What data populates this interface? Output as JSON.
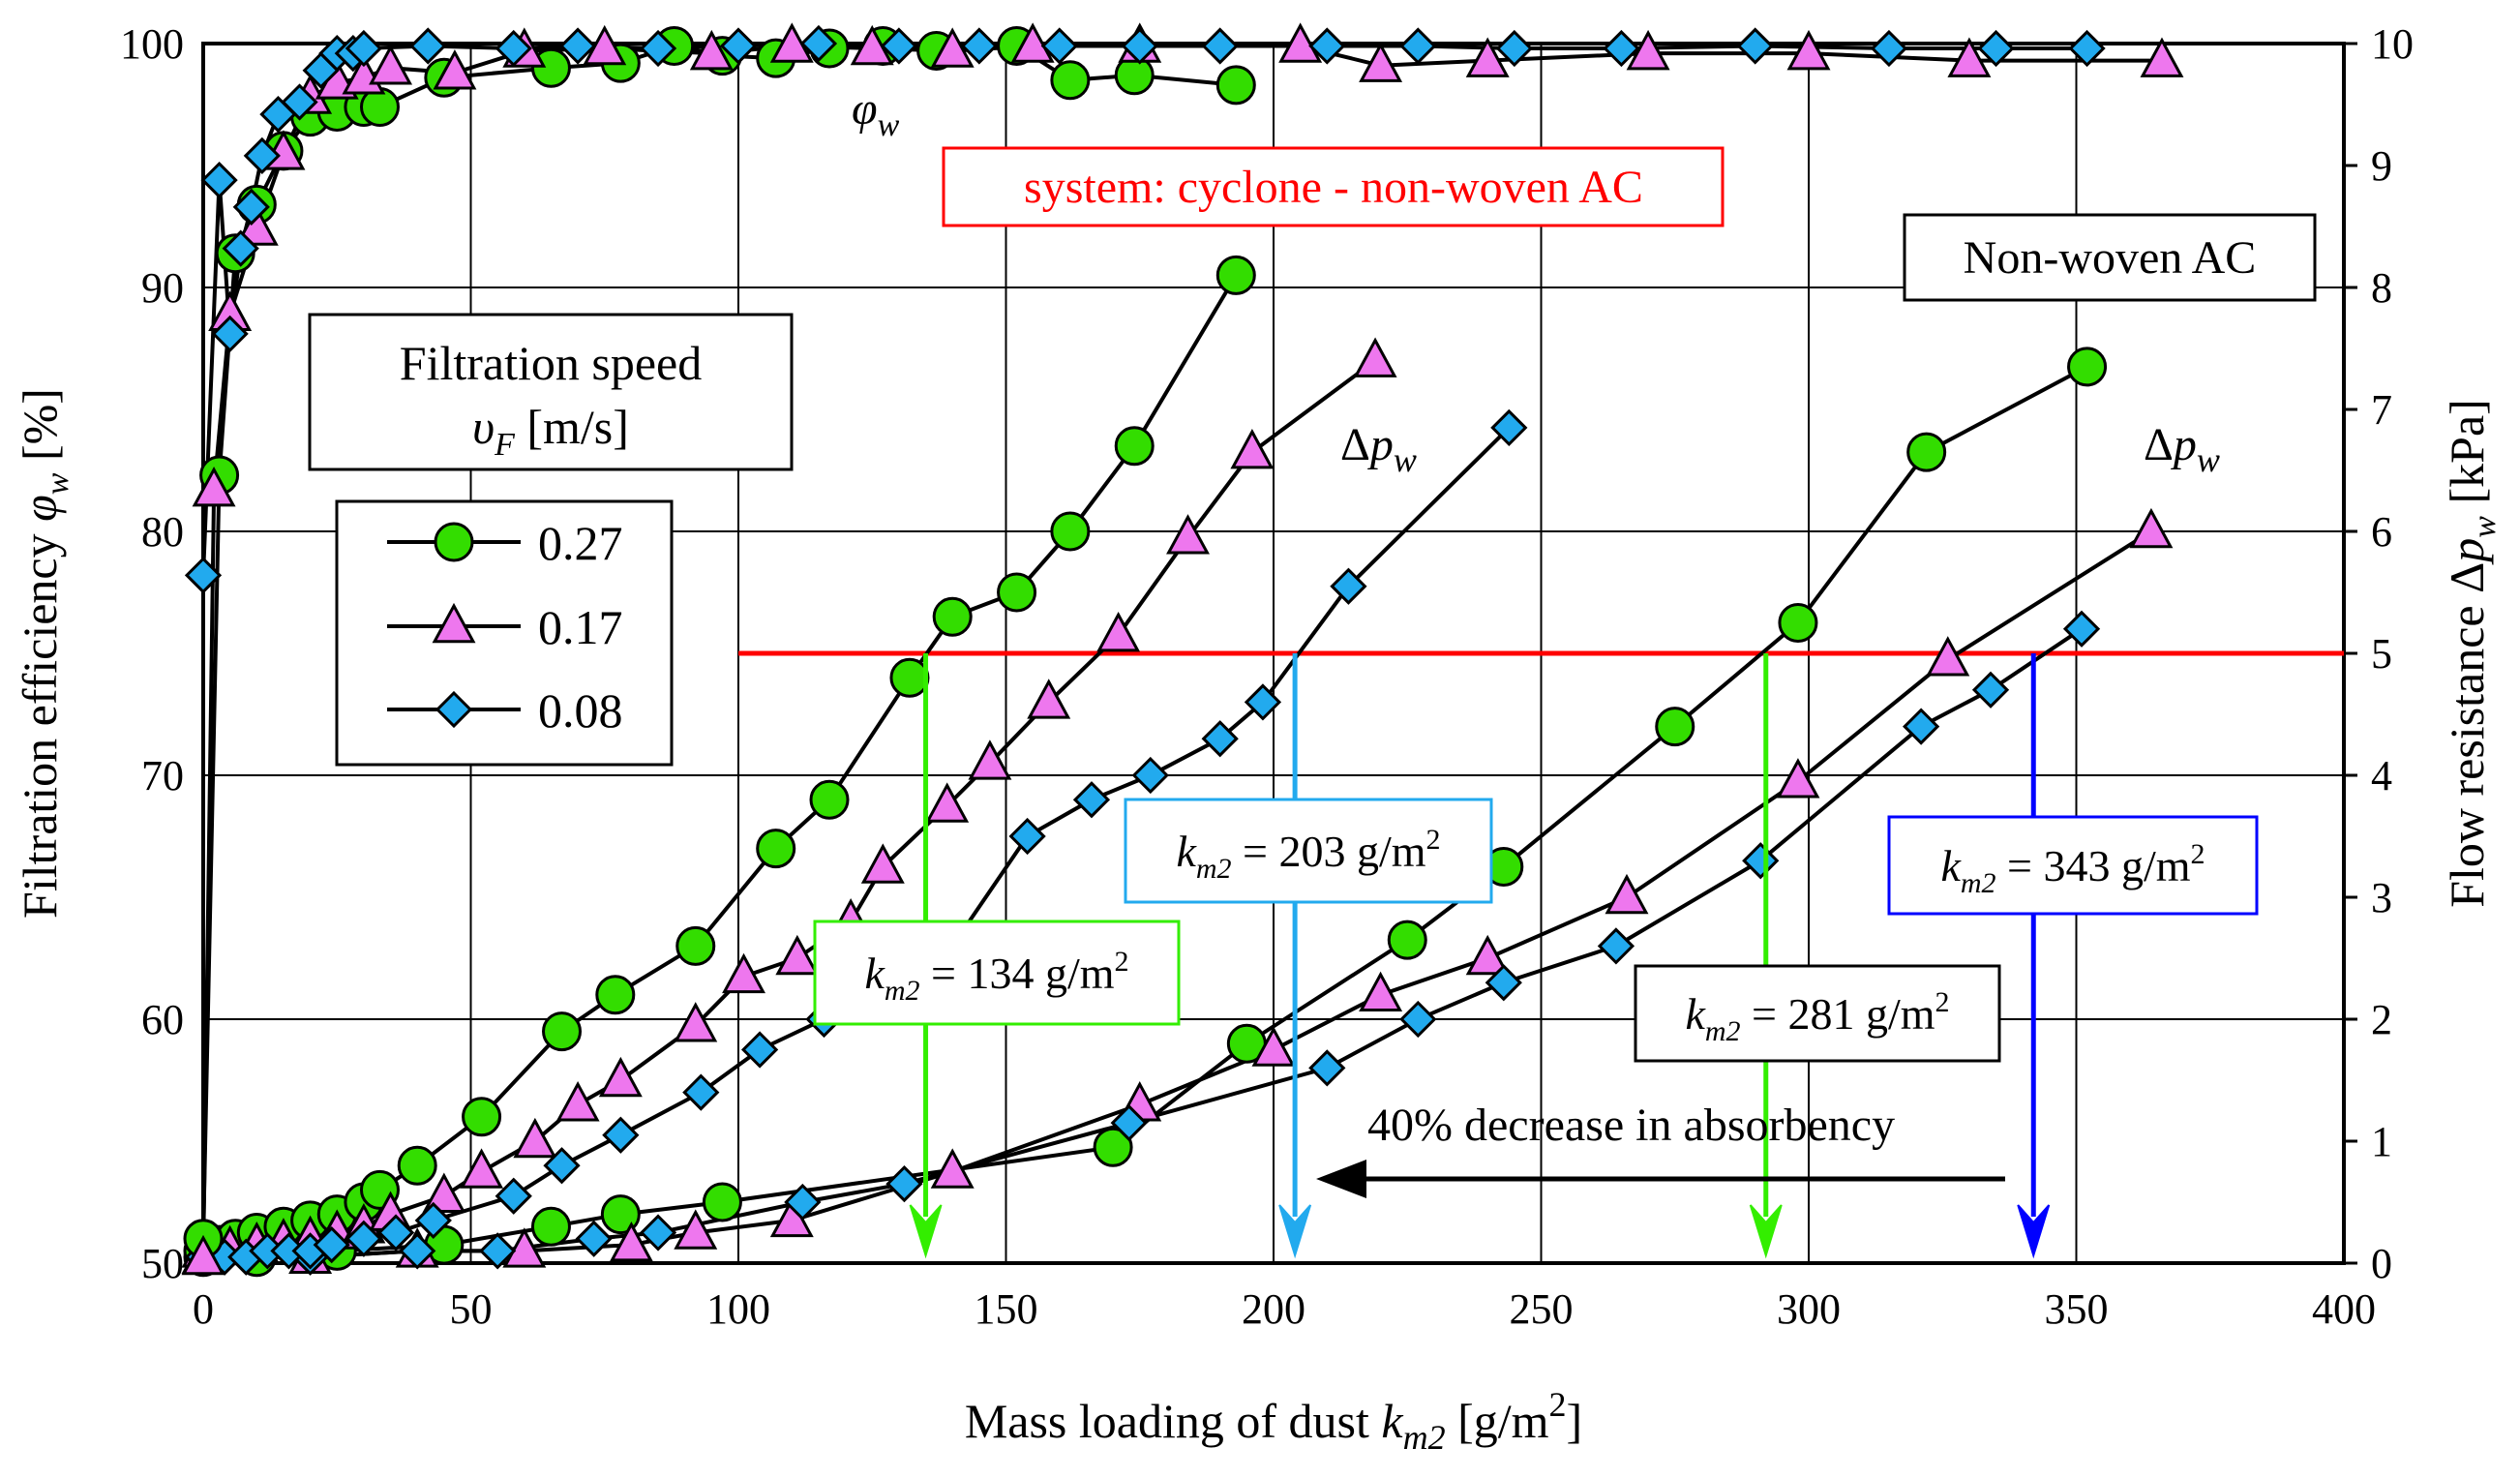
{
  "chart_data": {
    "type": "line",
    "title": "",
    "xlabel": {
      "pre": "Mass loading of dust ",
      "var": "k",
      "sub": "m2",
      "post": " [g/m",
      "sup": "2",
      "end": "]"
    },
    "ylabel_left": {
      "pre": "Filtration efficiency ",
      "var": "φ",
      "sub": "w",
      "post": " [%]"
    },
    "ylabel_right": {
      "pre": "Flow resistance Δ",
      "var": "p",
      "sub": "w",
      "post": " [kPa]"
    },
    "xlim": [
      0,
      400
    ],
    "ylim_left": [
      50,
      100
    ],
    "ylim_right": [
      0,
      10
    ],
    "xticks": [
      "0",
      "50",
      "100",
      "150",
      "200",
      "250",
      "300",
      "350",
      "400"
    ],
    "yticks_left": [
      "50",
      "60",
      "70",
      "80",
      "90",
      "100"
    ],
    "yticks_right": [
      "0",
      "1",
      "2",
      "3",
      "4",
      "5",
      "6",
      "7",
      "8",
      "9",
      "10"
    ],
    "grid": true,
    "legend": {
      "title_line1": "Filtration speed",
      "title_line2": {
        "var": "υ",
        "sub": "F",
        "post": " [m/s]"
      },
      "entries": [
        "0.27",
        "0.17",
        "0.08"
      ],
      "placement": "upper-left"
    },
    "series_styles": [
      {
        "name": "0.27",
        "marker": "circle",
        "color": "#33dd00"
      },
      {
        "name": "0.17",
        "marker": "triangle",
        "color": "#ee77ee"
      },
      {
        "name": "0.08",
        "marker": "diamond",
        "color": "#22aaee"
      }
    ],
    "efficiency_series": [
      {
        "name": "0.27",
        "x": [
          0,
          3,
          6,
          10,
          15,
          20,
          25,
          30,
          33,
          45,
          65,
          78,
          88,
          97,
          107,
          117,
          127,
          137,
          152,
          162,
          174,
          193
        ],
        "y": [
          51,
          82.3,
          91.4,
          93.4,
          95.6,
          97,
          97.2,
          97.4,
          97.4,
          98.6,
          99,
          99.2,
          99.9,
          99.5,
          99.4,
          99.8,
          99.9,
          99.7,
          99.9,
          98.5,
          98.7,
          98.3
        ]
      },
      {
        "name": "0.17",
        "x": [
          0,
          2,
          5,
          10,
          15,
          20,
          25,
          30,
          35,
          47,
          60,
          75,
          95,
          110,
          125,
          140,
          155,
          175,
          205,
          220,
          240,
          270,
          300,
          330,
          366
        ],
        "y": [
          50.2,
          81.7,
          88.9,
          92.4,
          95.5,
          97.8,
          98.4,
          98.6,
          99,
          98.8,
          99.7,
          99.8,
          99.6,
          99.9,
          99.8,
          99.7,
          99.9,
          99.9,
          99.9,
          99.1,
          99.3,
          99.6,
          99.6,
          99.3,
          99.3
        ]
      },
      {
        "name": "0.08",
        "x": [
          0,
          3,
          5,
          7,
          9,
          11,
          14,
          18,
          22,
          25,
          28,
          30,
          42,
          58,
          70,
          85,
          100,
          115,
          130,
          145,
          160,
          175,
          190,
          210,
          227,
          245,
          265,
          290,
          315,
          335,
          352
        ],
        "y": [
          78.2,
          94.4,
          88.1,
          91.6,
          93.3,
          95.4,
          97.1,
          97.6,
          98.9,
          99.6,
          99.6,
          99.8,
          99.9,
          99.8,
          99.9,
          99.8,
          99.9,
          100,
          99.9,
          99.9,
          99.9,
          99.9,
          99.9,
          99.9,
          99.9,
          99.8,
          99.8,
          99.9,
          99.8,
          99.8,
          99.8
        ]
      }
    ],
    "pressure_series_system": [
      {
        "name": "0.27",
        "x": [
          0,
          3,
          6,
          10,
          15,
          20,
          25,
          30,
          33,
          40,
          52,
          67,
          77,
          92,
          107,
          117,
          132,
          140,
          152,
          162,
          174,
          193
        ],
        "y": [
          0.1,
          0.15,
          0.2,
          0.25,
          0.3,
          0.35,
          0.4,
          0.5,
          0.6,
          0.8,
          1.2,
          1.9,
          2.2,
          2.6,
          3.4,
          3.8,
          4.8,
          5.3,
          5.5,
          6,
          6.7,
          8.1
        ]
      },
      {
        "name": "0.17",
        "x": [
          0,
          5,
          10,
          15,
          20,
          25,
          30,
          35,
          45,
          52,
          62,
          70,
          78,
          92,
          101,
          111,
          121,
          127,
          139,
          147,
          158,
          171,
          184,
          196,
          219
        ],
        "y": [
          0.1,
          0.12,
          0.15,
          0.18,
          0.2,
          0.25,
          0.3,
          0.4,
          0.55,
          0.75,
          1.0,
          1.3,
          1.5,
          1.95,
          2.35,
          2.5,
          2.8,
          3.25,
          3.75,
          4.1,
          4.6,
          5.15,
          5.95,
          6.65,
          7.4
        ]
      },
      {
        "name": "0.08",
        "x": [
          0,
          4,
          8,
          12,
          16,
          20,
          24,
          30,
          36,
          43,
          58,
          67,
          78,
          93,
          104,
          116,
          140,
          154,
          166,
          177,
          190,
          198,
          214,
          244
        ],
        "y": [
          0.05,
          0.05,
          0.05,
          0.1,
          0.1,
          0.1,
          0.15,
          0.2,
          0.25,
          0.35,
          0.55,
          0.8,
          1.05,
          1.4,
          1.75,
          2.0,
          2.6,
          3.5,
          3.8,
          4.0,
          4.3,
          4.6,
          5.55,
          6.85
        ]
      }
    ],
    "pressure_series_nonwoven": [
      {
        "name": "0.27",
        "x": [
          0,
          10,
          25,
          45,
          65,
          78,
          97,
          170,
          195,
          225,
          243,
          275,
          298,
          322,
          352
        ],
        "y": [
          0.05,
          0.05,
          0.1,
          0.15,
          0.3,
          0.4,
          0.5,
          0.95,
          1.8,
          2.65,
          3.25,
          4.4,
          5.25,
          6.65,
          7.35
        ]
      },
      {
        "name": "0.17",
        "x": [
          0,
          20,
          40,
          60,
          80,
          92,
          110,
          140,
          175,
          200,
          220,
          240,
          266,
          298,
          326,
          364
        ],
        "y": [
          0.05,
          0.05,
          0.1,
          0.1,
          0.15,
          0.25,
          0.35,
          0.75,
          1.3,
          1.75,
          2.2,
          2.5,
          3.0,
          3.95,
          4.95,
          6.0
        ]
      },
      {
        "name": "0.08",
        "x": [
          0,
          20,
          40,
          55,
          73,
          85,
          112,
          131,
          173,
          210,
          227,
          243,
          264,
          291,
          321,
          334,
          351
        ],
        "y": [
          0.05,
          0.05,
          0.1,
          0.1,
          0.2,
          0.25,
          0.5,
          0.65,
          1.15,
          1.6,
          2.0,
          2.3,
          2.6,
          3.3,
          4.4,
          4.7,
          5.2
        ]
      }
    ],
    "threshold_line": {
      "right_axis_value": 5,
      "x_start": 100,
      "x_end": 400,
      "color": "#ff0000"
    },
    "annotations": {
      "phi_label": {
        "var": "φ",
        "sub": "w"
      },
      "dp_label": {
        "pre": "Δ",
        "var": "p",
        "sub": "w"
      },
      "system_box": "system: cyclone - non-woven AC",
      "nonwoven_box": "Non-woven AC",
      "decrease_text": "40% decrease in absorbency",
      "kboxes": [
        {
          "value": "134",
          "color": "#33ee00",
          "arrow_x": 135
        },
        {
          "value": "203",
          "color": "#22aaee",
          "arrow_x": 204
        },
        {
          "value": "281",
          "color": "#000000",
          "arrow_x": 292
        },
        {
          "value": "343",
          "color": "#0000ff",
          "arrow_x": 342
        }
      ],
      "kbox_var": "k",
      "kbox_sub": "m2",
      "kbox_mid": " = ",
      "kbox_unit": " g/m",
      "kbox_sup": "2"
    }
  }
}
